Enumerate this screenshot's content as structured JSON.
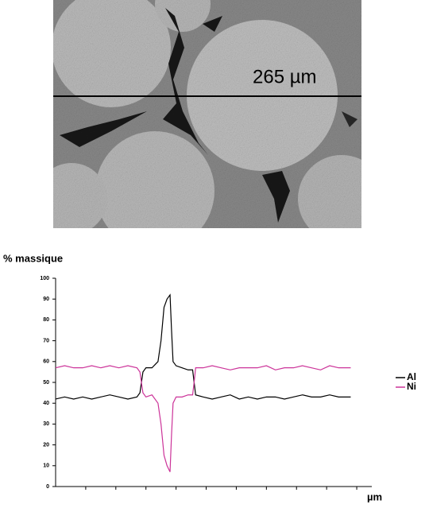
{
  "image_annotation": "265 µm",
  "chart_data": {
    "type": "line",
    "y_label": "% massique",
    "x_label": "µm",
    "x": [
      0,
      3,
      6,
      9,
      12,
      15,
      18,
      21,
      24,
      27,
      28,
      29,
      30,
      32,
      34,
      35,
      36,
      37,
      38,
      38.5,
      39,
      40,
      42,
      44,
      45.5,
      46,
      46.5,
      49,
      52,
      55,
      58,
      61,
      64,
      67,
      70,
      73,
      76,
      79,
      82,
      85,
      88,
      91,
      94,
      98
    ],
    "series": [
      {
        "name": "Al",
        "color": "#000000",
        "values": [
          42,
          43,
          42,
          43,
          42,
          43,
          44,
          43,
          42,
          43,
          45,
          55,
          57,
          57,
          60,
          70,
          86,
          90,
          92,
          75,
          60,
          58,
          57,
          56,
          56,
          50,
          44,
          43,
          42,
          43,
          44,
          42,
          43,
          42,
          43,
          43,
          42,
          43,
          44,
          43,
          43,
          44,
          43,
          43
        ]
      },
      {
        "name": "Ni",
        "color": "#cc3399",
        "values": [
          57,
          58,
          57,
          57,
          58,
          57,
          58,
          57,
          58,
          57,
          55,
          45,
          43,
          44,
          40,
          30,
          15,
          10,
          7,
          25,
          40,
          43,
          43,
          44,
          44,
          50,
          57,
          57,
          58,
          57,
          56,
          57,
          57,
          57,
          58,
          56,
          57,
          57,
          58,
          57,
          56,
          58,
          57,
          57
        ]
      }
    ],
    "xlim": [
      0,
      105
    ],
    "ylim": [
      0,
      100
    ],
    "yticks": [
      0,
      10,
      20,
      30,
      40,
      50,
      60,
      70,
      80,
      90,
      100
    ],
    "legend": "right"
  }
}
